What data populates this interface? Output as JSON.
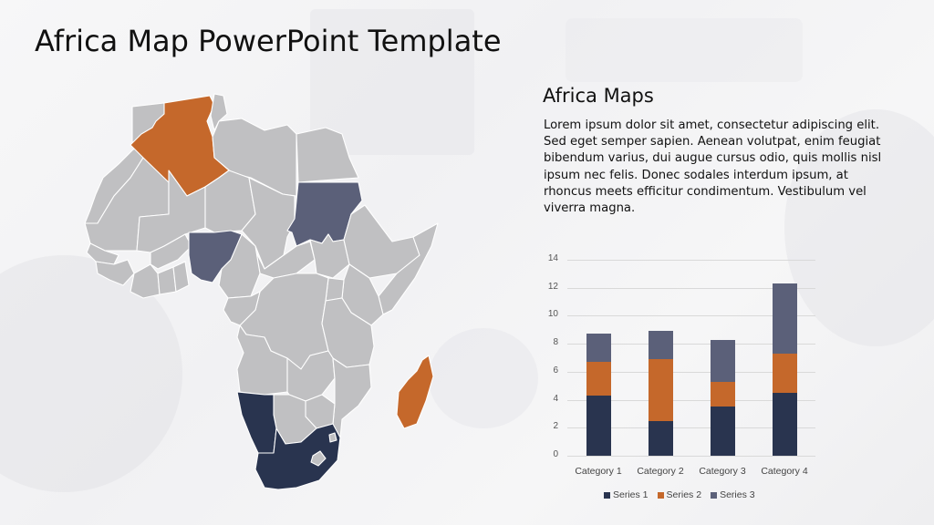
{
  "slide": {
    "title": "Africa Map PowerPoint Template",
    "subtitle": "Africa Maps",
    "body": "Lorem ipsum dolor sit amet, consectetur adipiscing elit. Sed eget semper sapien. Aenean volutpat, enim feugiat bibendum varius, dui augue cursus odio, quis mollis nisl ipsum nec felis. Donec sodales interdum ipsum, at rhoncus meets efficitur condimentum. Vestibulum vel viverra magna."
  },
  "colors": {
    "base_country": "#c0c0c2",
    "border": "#ffffff",
    "orange": "#c5682b",
    "slate": "#5b6079",
    "navy": "#29344f"
  },
  "map": {
    "highlighted": [
      {
        "country": "Algeria",
        "color": "#c5682b"
      },
      {
        "country": "Madagascar",
        "color": "#c5682b"
      },
      {
        "country": "Sudan",
        "color": "#5b6079"
      },
      {
        "country": "Nigeria",
        "color": "#5b6079"
      },
      {
        "country": "Namibia",
        "color": "#29344f"
      },
      {
        "country": "South Africa",
        "color": "#29344f"
      }
    ]
  },
  "chart_data": {
    "type": "bar",
    "stacked": true,
    "title": "",
    "xlabel": "",
    "ylabel": "",
    "categories": [
      "Category 1",
      "Category 2",
      "Category 3",
      "Category 4"
    ],
    "series": [
      {
        "name": "Series 1",
        "color": "#29344f",
        "values": [
          4.3,
          2.5,
          3.5,
          4.5
        ]
      },
      {
        "name": "Series 2",
        "color": "#c5682b",
        "values": [
          2.4,
          4.4,
          1.8,
          2.8
        ]
      },
      {
        "name": "Series 3",
        "color": "#5b6079",
        "values": [
          2,
          2,
          3,
          5
        ]
      }
    ],
    "yticks": [
      "0",
      "2",
      "4",
      "6",
      "8",
      "10",
      "12",
      "14"
    ],
    "ylim": [
      0,
      14
    ],
    "grid": true,
    "legend_position": "bottom"
  }
}
